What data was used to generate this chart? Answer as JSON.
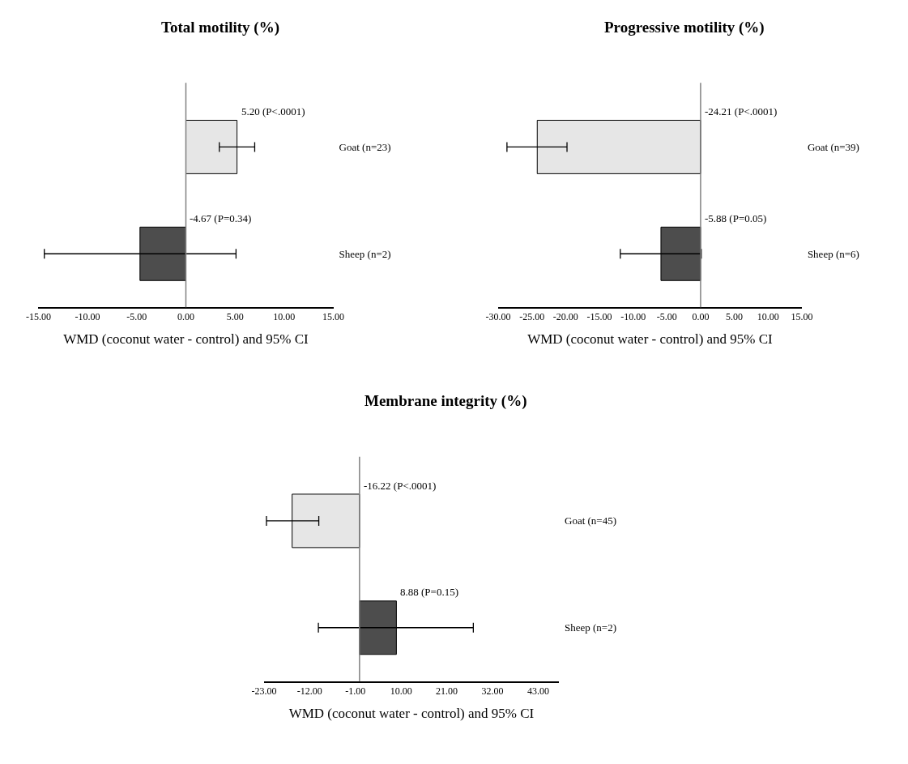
{
  "chart_data": [
    {
      "type": "bar",
      "orientation": "horizontal",
      "title": "Total motility (%)",
      "xlabel": "WMD (coconut water - control) and 95% CI",
      "categories": [
        "Goat (n=23)",
        "Sheep (n=2)"
      ],
      "values": [
        5.2,
        -4.67
      ],
      "colors": [
        "#e6e6e6",
        "#4d4d4d"
      ],
      "errors": [
        [
          3.4,
          7.0
        ],
        [
          -14.4,
          5.1
        ]
      ],
      "value_labels": [
        "5.20 (P<.0001)",
        "-4.67 (P=0.34)"
      ],
      "xlim": [
        -15,
        15
      ],
      "xticks": [
        {
          "value": -15,
          "label": "-15.00"
        },
        {
          "value": -10,
          "label": "-10.00"
        },
        {
          "value": -5,
          "label": "-5.00"
        },
        {
          "value": 0,
          "label": "0.00"
        },
        {
          "value": 5,
          "label": "5.00"
        },
        {
          "value": 10,
          "label": "10.00"
        },
        {
          "value": 15,
          "label": "15.00"
        }
      ],
      "legend": false,
      "ref_lines": [
        {
          "axis": "x",
          "value": 0,
          "color": "#808080"
        }
      ]
    },
    {
      "type": "bar",
      "orientation": "horizontal",
      "title": "Progressive motility (%)",
      "xlabel": "WMD (coconut water - control) and 95% CI",
      "categories": [
        "Goat (n=39)",
        "Sheep (n=6)"
      ],
      "values": [
        -24.21,
        -5.88
      ],
      "colors": [
        "#e6e6e6",
        "#4d4d4d"
      ],
      "errors": [
        [
          -28.7,
          -19.8
        ],
        [
          -11.9,
          0.1
        ]
      ],
      "value_labels": [
        "-24.21 (P<.0001)",
        "-5.88 (P=0.05)"
      ],
      "xlim": [
        -30,
        15
      ],
      "xticks": [
        {
          "value": -30,
          "label": "-30.00"
        },
        {
          "value": -25,
          "label": "-25.00"
        },
        {
          "value": -20,
          "label": "-20.00"
        },
        {
          "value": -15,
          "label": "-15.00"
        },
        {
          "value": -10,
          "label": "-10.00"
        },
        {
          "value": -5,
          "label": "-5.00"
        },
        {
          "value": 0,
          "label": "0.00"
        },
        {
          "value": 5,
          "label": "5.00"
        },
        {
          "value": 10,
          "label": "10.00"
        },
        {
          "value": 15,
          "label": "15.00"
        }
      ],
      "legend": false,
      "ref_lines": [
        {
          "axis": "x",
          "value": 0,
          "color": "#808080"
        }
      ]
    },
    {
      "type": "bar",
      "orientation": "horizontal",
      "title": "Membrane integrity (%)",
      "xlabel": "WMD (coconut water - control) and 95% CI",
      "categories": [
        "Goat (n=45)",
        "Sheep (n=2)"
      ],
      "values": [
        -16.22,
        8.88
      ],
      "colors": [
        "#e6e6e6",
        "#4d4d4d"
      ],
      "errors": [
        [
          -22.4,
          -9.8
        ],
        [
          -9.9,
          27.4
        ]
      ],
      "value_labels": [
        "-16.22 (P<.0001)",
        "8.88 (P=0.15)"
      ],
      "xlim": [
        -23,
        48
      ],
      "xticks": [
        {
          "value": -23,
          "label": "-23.00"
        },
        {
          "value": -12,
          "label": "-12.00"
        },
        {
          "value": -1,
          "label": "-1.00"
        },
        {
          "value": 10,
          "label": "10.00"
        },
        {
          "value": 21,
          "label": "21.00"
        },
        {
          "value": 32,
          "label": "32.00"
        },
        {
          "value": 43,
          "label": "43.00"
        }
      ],
      "legend": false,
      "ref_lines": [
        {
          "axis": "x",
          "value": 0,
          "color": "#808080"
        }
      ]
    }
  ]
}
